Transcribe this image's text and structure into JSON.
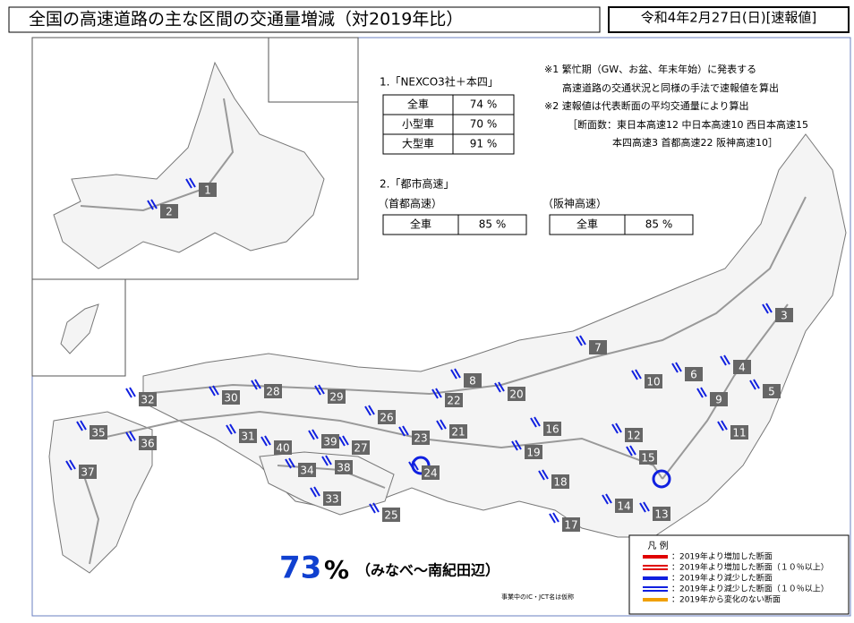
{
  "header": {
    "title": "全国の高速道路の主な区間の交通量増減（対2019年比）",
    "date": "令和4年2月27日(日)[速報値]"
  },
  "nexco": {
    "heading": "1.「NEXCO3社＋本四」",
    "rows": [
      [
        "全車",
        "74 %"
      ],
      [
        "小型車",
        "70 %"
      ],
      [
        "大型車",
        "91 %"
      ]
    ]
  },
  "urban": {
    "heading": "2.「都市高速」",
    "shuto": {
      "name": "（首都高速）",
      "rows": [
        [
          "全車",
          "85 %"
        ]
      ]
    },
    "hanshin": {
      "name": "（阪神高速）",
      "rows": [
        [
          "全車",
          "85 %"
        ]
      ]
    }
  },
  "notes": [
    "※1 繁忙期（GW、お盆、年末年始）に発表する",
    "高速道路の交通状況と同様の手法で速報値を算出",
    "※2 速報値は代表断面の平均交通量により算出",
    "［断面数：東日本高速12 中日本高速10 西日本高速15",
    "本四高速3 首都高速22 阪神高速10］"
  ],
  "section_labels": [
    "1",
    "2",
    "3",
    "4",
    "5",
    "6",
    "7",
    "8",
    "9",
    "10",
    "11",
    "12",
    "13",
    "14",
    "15",
    "16",
    "17",
    "18",
    "19",
    "20",
    "21",
    "22",
    "23",
    "24",
    "25",
    "26",
    "27",
    "28",
    "29",
    "30",
    "31",
    "32",
    "33",
    "34",
    "35",
    "36",
    "37",
    "38",
    "39",
    "40"
  ],
  "highlight": {
    "value": "73",
    "unit": "%",
    "place": "（みなべ～南紀田辺）"
  },
  "footnote": "事業中のIC・JCT名は仮称",
  "legend": {
    "title": "凡 例",
    "items": [
      {
        "label": "：2019年より増加した断面",
        "color": "#e00000",
        "style": "single"
      },
      {
        "label": "：2019年より増加した断面（１０％以上）",
        "color": "#e00000",
        "style": "double"
      },
      {
        "label": "：2019年より減少した断面",
        "color": "#1020e0",
        "style": "single"
      },
      {
        "label": "：2019年より減少した断面（１０％以上）",
        "color": "#1020e0",
        "style": "double"
      },
      {
        "label": "：2019年から変化のない断面",
        "color": "#f0a000",
        "style": "single"
      }
    ]
  }
}
